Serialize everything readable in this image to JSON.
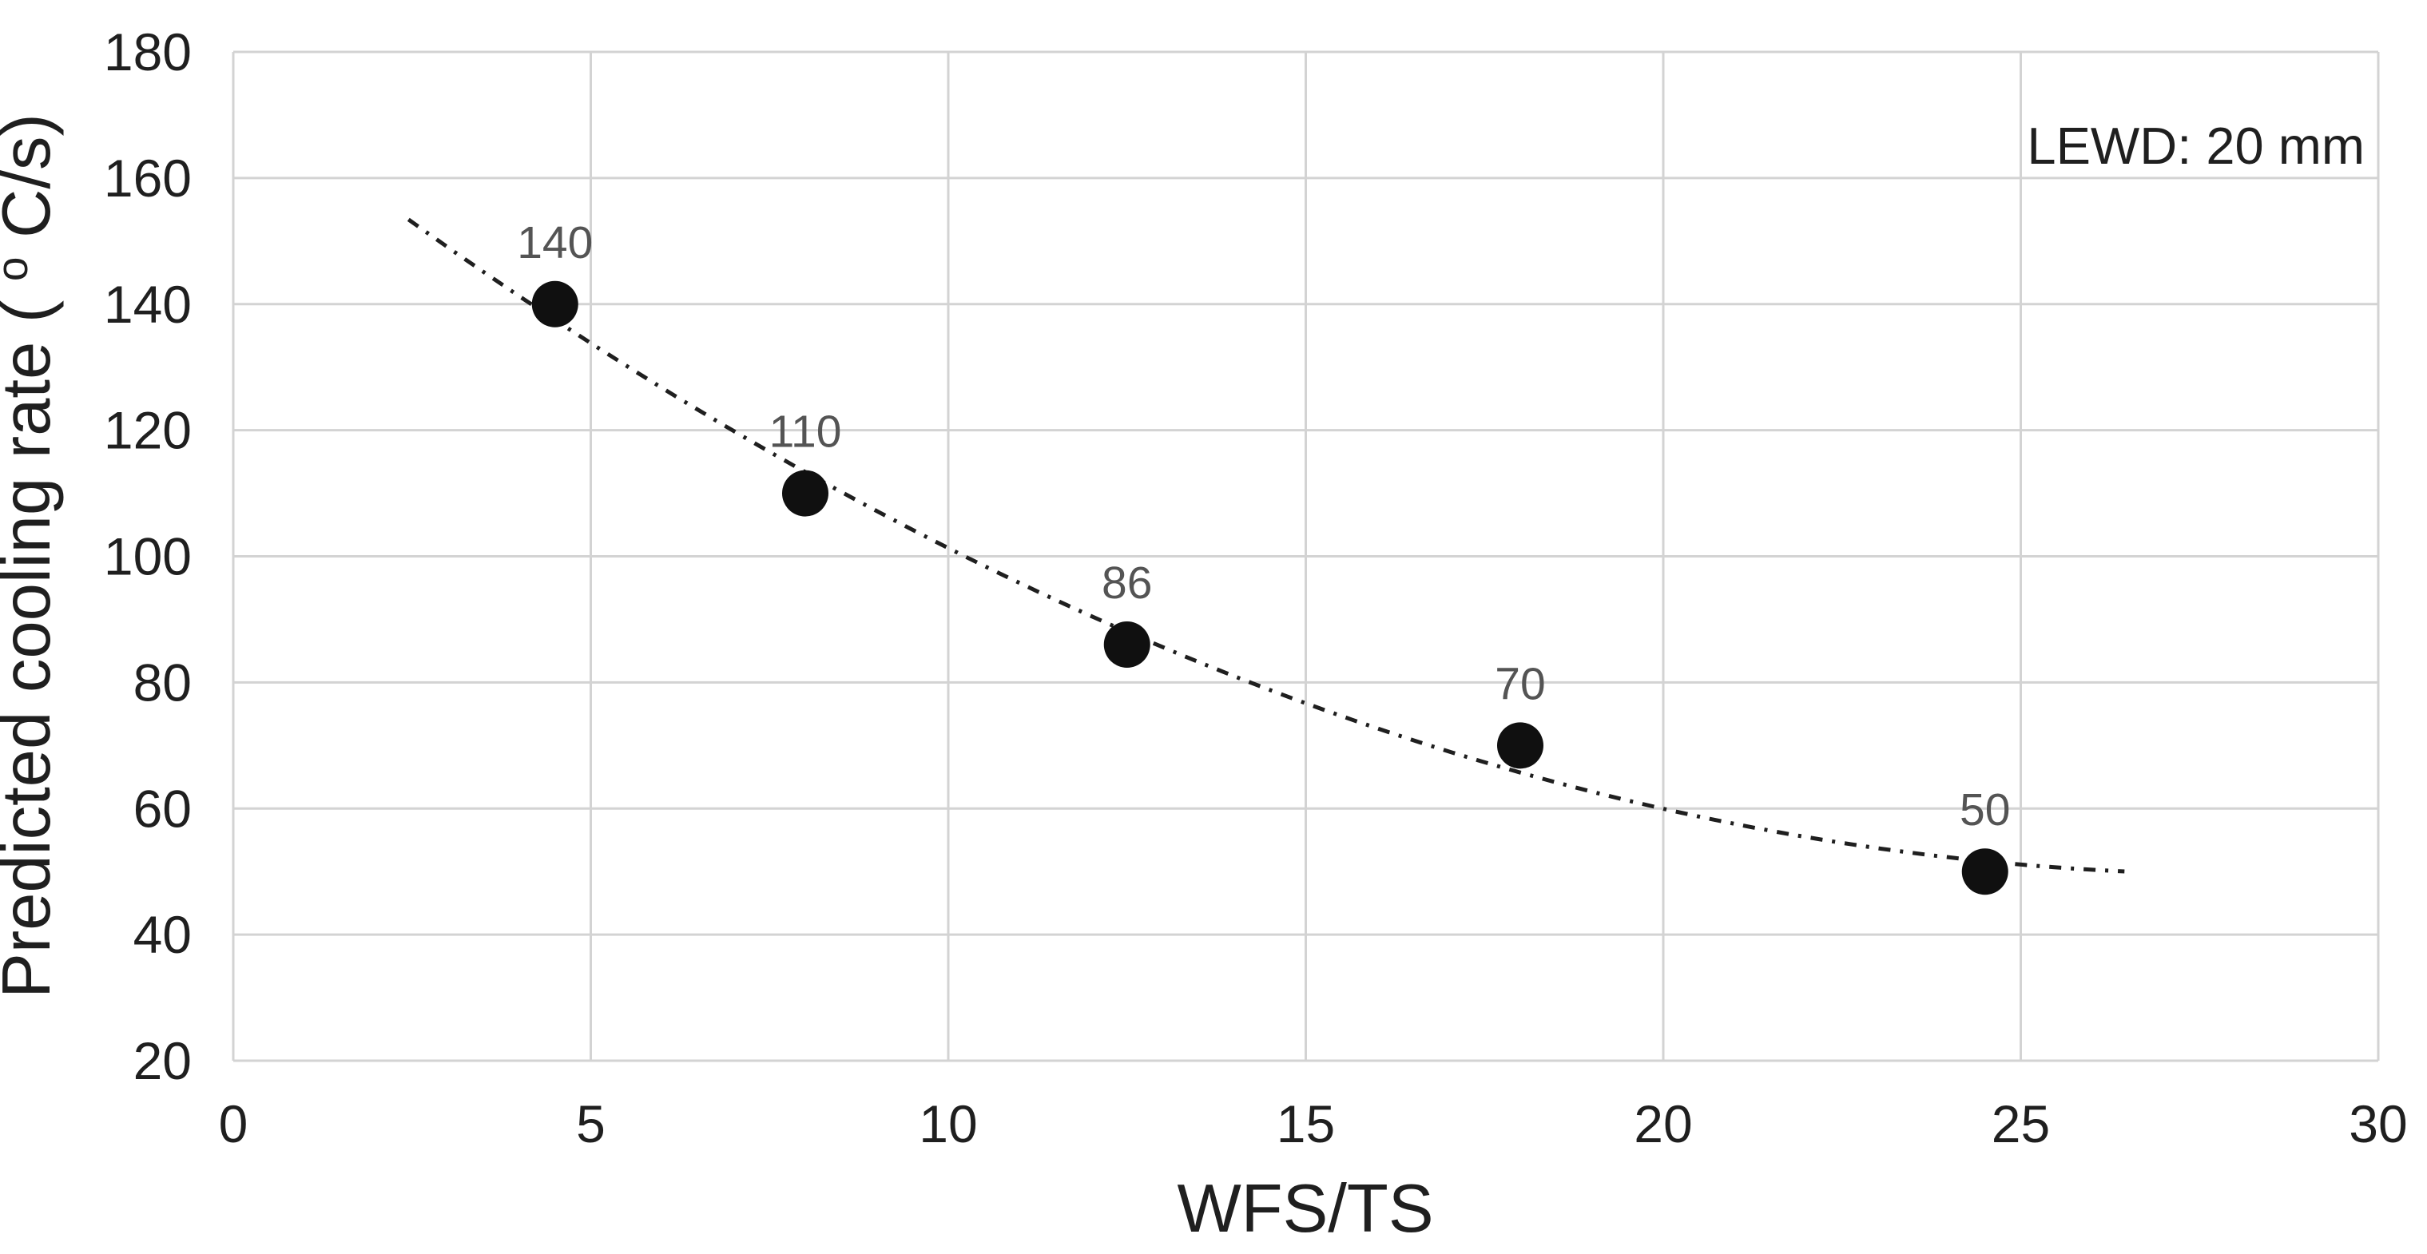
{
  "chart_data": {
    "type": "scatter",
    "title": "",
    "xlabel": "WFS/TS",
    "ylabel": "Predicted cooling rate (oC/s)",
    "ylabel_parts": {
      "prefix": "Predicted cooling rate (",
      "sup": "o",
      "suffix": "C/s)"
    },
    "annotation": "LEWD: 20 mm",
    "xlim": [
      0,
      30
    ],
    "ylim": [
      20,
      180
    ],
    "x_ticks": [
      0,
      5,
      10,
      15,
      20,
      25,
      30
    ],
    "y_ticks": [
      20,
      40,
      60,
      80,
      100,
      120,
      140,
      160,
      180
    ],
    "grid": true,
    "legend": "none",
    "series": [
      {
        "name": "predicted-cooling-rate",
        "marker": "filled-circle",
        "points": [
          {
            "x": 4.5,
            "y": 140,
            "label": "140"
          },
          {
            "x": 8,
            "y": 110,
            "label": "110"
          },
          {
            "x": 12.5,
            "y": 86,
            "label": "86"
          },
          {
            "x": 18,
            "y": 70,
            "label": "70"
          },
          {
            "x": 24.5,
            "y": 50,
            "label": "50"
          }
        ]
      }
    ],
    "trendline": {
      "style": "dash-dot",
      "type": "quadratic",
      "a": 0.1577,
      "b": -8.866,
      "c": 174.2,
      "x_start": 2.45,
      "x_end": 26.6
    },
    "colors": {
      "background": "#ffffff",
      "grid": "#d3d3d3",
      "marker": "#101010",
      "trend": "#1f1f1f",
      "point_label": "#545454",
      "tick_label": "#1f1f1f"
    }
  }
}
